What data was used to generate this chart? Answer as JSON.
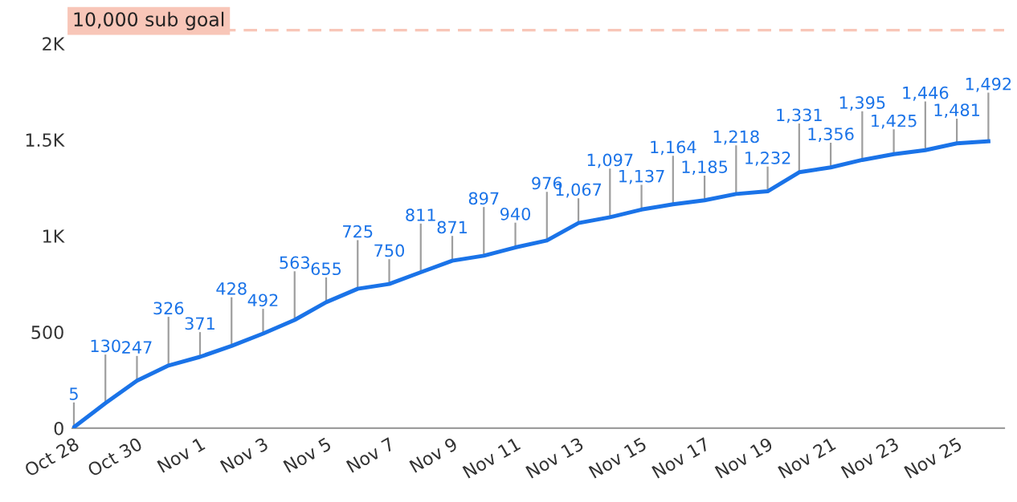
{
  "chart_data": {
    "type": "line",
    "categories": [
      "Oct 28",
      null,
      "Oct 30",
      null,
      "Nov 1",
      null,
      "Nov 3",
      null,
      "Nov 5",
      null,
      "Nov 7",
      null,
      "Nov 9",
      null,
      "Nov 11",
      null,
      "Nov 13",
      null,
      "Nov 15",
      null,
      "Nov 17",
      null,
      "Nov 19",
      null,
      "Nov 21",
      null,
      "Nov 23",
      null,
      "Nov 25",
      null
    ],
    "series": [
      {
        "color": "#1a73e8",
        "values": [
          5,
          130,
          247,
          326,
          371,
          428,
          492,
          563,
          655,
          725,
          750,
          811,
          871,
          897,
          940,
          976,
          1067,
          1097,
          1137,
          1164,
          1185,
          1218,
          1232,
          1331,
          1356,
          1395,
          1425,
          1446,
          1481,
          1492
        ]
      }
    ],
    "ylim": [
      0,
      2070
    ],
    "yticks": [
      0,
      500,
      {
        "value": 1000,
        "label": "1K"
      },
      {
        "value": 1500,
        "label": "1.5K"
      },
      {
        "value": 2000,
        "label": "2K"
      }
    ],
    "value_labels": [
      "5",
      "130",
      "247",
      "326",
      "371",
      "428",
      "492",
      "563",
      "655",
      "725",
      "750",
      "811",
      "871",
      "897",
      "940",
      "976",
      "1,067",
      "1,097",
      "1,137",
      "1,164",
      "1,185",
      "1,218",
      "1,232",
      "1,331",
      "1,356",
      "1,395",
      "1,425",
      "1,446",
      "1,481",
      "1,492"
    ],
    "marker": "none",
    "line_style": "solid",
    "grid": false,
    "legend": false,
    "ref_lines": [
      {
        "axis": "y",
        "value": 2070,
        "label": "10,000 sub goal",
        "color": "#f8c6b8",
        "line_style": "dashed"
      }
    ]
  }
}
